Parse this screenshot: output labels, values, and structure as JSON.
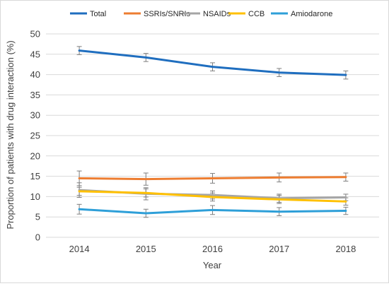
{
  "chart_data": {
    "type": "line",
    "title": "",
    "xlabel": "Year",
    "ylabel": "Proportion of patients with drug interaction (%)",
    "ylim": [
      0,
      50
    ],
    "yticks": [
      0,
      5,
      10,
      15,
      20,
      25,
      30,
      35,
      40,
      45,
      50
    ],
    "categories": [
      "2014",
      "2015",
      "2016",
      "2017",
      "2018"
    ],
    "grid": "horizontal",
    "legend_position": "top",
    "error_bars": true,
    "series": [
      {
        "name": "Total",
        "color": "#1f6ebf",
        "values": [
          45.9,
          44.2,
          41.9,
          40.5,
          39.9
        ],
        "errors": [
          1.0,
          1.0,
          1.0,
          1.0,
          1.0
        ]
      },
      {
        "name": "SSRIs/SNRIs",
        "color": "#ed7d31",
        "values": [
          14.5,
          14.3,
          14.5,
          14.7,
          14.8
        ],
        "errors": [
          1.8,
          1.5,
          1.2,
          1.1,
          1.0
        ]
      },
      {
        "name": "NSAIDs",
        "color": "#a5a5a5",
        "values": [
          11.6,
          10.7,
          10.4,
          9.6,
          9.8
        ],
        "errors": [
          1.8,
          1.5,
          1.0,
          1.0,
          0.8
        ]
      },
      {
        "name": "CCB",
        "color": "#ffc000",
        "values": [
          11.3,
          10.9,
          9.9,
          9.3,
          8.8
        ],
        "errors": [
          1.0,
          1.0,
          1.0,
          1.0,
          0.9
        ]
      },
      {
        "name": "Amiodarone",
        "color": "#2e9fd8",
        "values": [
          6.9,
          5.9,
          6.7,
          6.3,
          6.5
        ],
        "errors": [
          1.2,
          1.0,
          1.1,
          1.0,
          0.9
        ]
      }
    ]
  }
}
